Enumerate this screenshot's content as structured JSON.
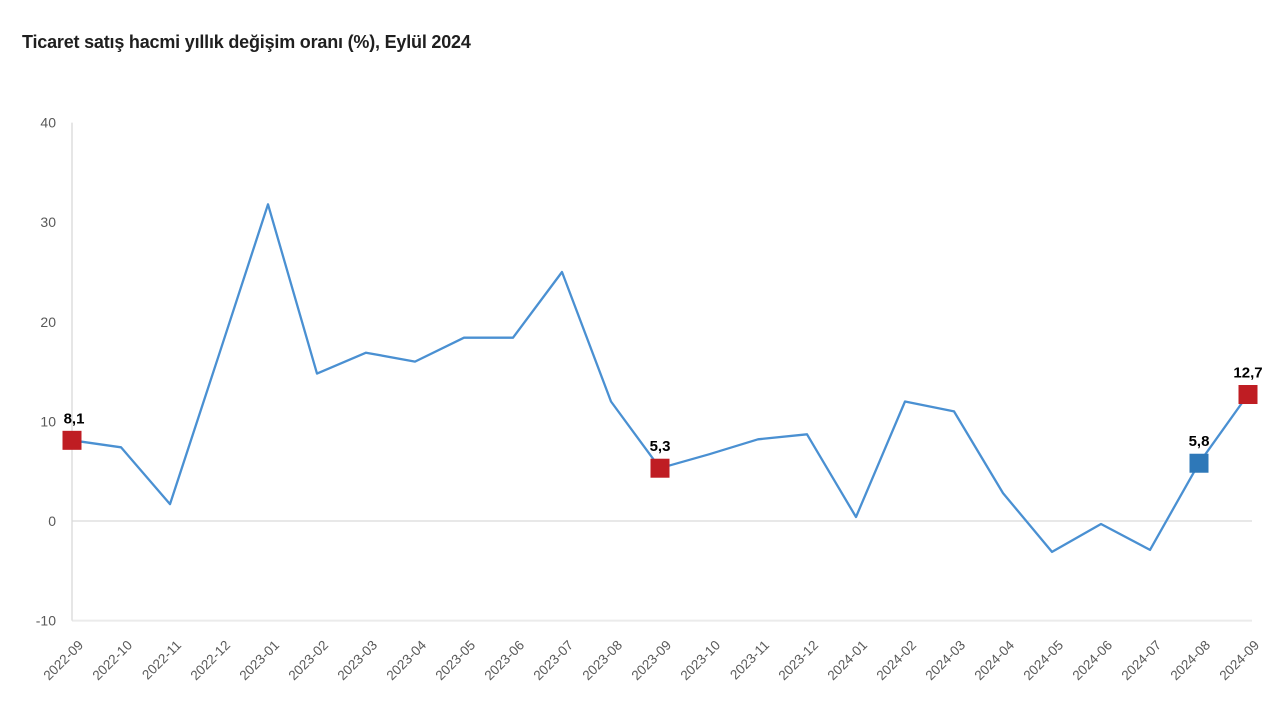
{
  "chart_data": {
    "type": "line",
    "title": "Ticaret satış hacmi yıllık değişim oranı (%), Eylül 2024",
    "x": [
      "2022-09",
      "2022-10",
      "2022-11",
      "2022-12",
      "2023-01",
      "2023-02",
      "2023-03",
      "2023-04",
      "2023-05",
      "2023-06",
      "2023-07",
      "2023-08",
      "2023-09",
      "2023-10",
      "2023-11",
      "2023-12",
      "2024-01",
      "2024-02",
      "2024-03",
      "2024-04",
      "2024-05",
      "2024-06",
      "2024-07",
      "2024-08",
      "2024-09"
    ],
    "values": [
      8.1,
      7.4,
      1.7,
      16.7,
      31.8,
      14.8,
      16.9,
      16.0,
      18.4,
      18.4,
      25.0,
      12.0,
      5.3,
      6.7,
      8.2,
      8.7,
      0.4,
      12.0,
      11.0,
      2.8,
      -3.1,
      -0.3,
      -2.9,
      5.8,
      12.7
    ],
    "ylim": [
      -10,
      40
    ],
    "yticks": [
      40,
      30,
      20,
      10,
      0,
      -10
    ],
    "xlabel": "",
    "ylabel": "",
    "legend": "none",
    "grid": "horizontal lines at 0 and -10 only, light gray; vertical axis line at left",
    "line_color": "#4a90d2",
    "axis_color": "#d9d9d9",
    "bottom_line_color": "#ebebeb",
    "tick_label_color": "#595959",
    "annotations": [
      {
        "x": "2022-09",
        "index": 0,
        "value": 8.1,
        "label": "8,1",
        "marker": "square",
        "marker_color": "#bf1d23"
      },
      {
        "x": "2023-09",
        "index": 12,
        "value": 5.3,
        "label": "5,3",
        "marker": "square",
        "marker_color": "#bf1d23"
      },
      {
        "x": "2024-08",
        "index": 23,
        "value": 5.8,
        "label": "5,8",
        "marker": "square",
        "marker_color": "#2e78b8"
      },
      {
        "x": "2024-09",
        "index": 24,
        "value": 12.7,
        "label": "12,7",
        "marker": "square",
        "marker_color": "#bf1d23"
      }
    ]
  }
}
